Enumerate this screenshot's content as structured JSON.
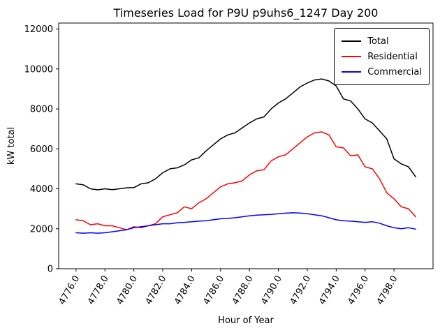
{
  "chart_data": {
    "type": "line",
    "title": "Timeseries Load for P9U p9uhs6_1247  Day 200",
    "xlabel": "Hour of Year",
    "ylabel": "kW total",
    "xlim": [
      4774.8,
      4800.7
    ],
    "ylim": [
      0,
      12300
    ],
    "grid": false,
    "legend_position": "upper right",
    "xticks": [
      4776,
      4778,
      4780,
      4782,
      4784,
      4786,
      4788,
      4790,
      4792,
      4794,
      4796,
      4798
    ],
    "xtick_labels": [
      "4776.0",
      "4778.0",
      "4780.0",
      "4782.0",
      "4784.0",
      "4786.0",
      "4788.0",
      "4790.0",
      "4792.0",
      "4794.0",
      "4796.0",
      "4798.0"
    ],
    "yticks": [
      0,
      2000,
      4000,
      6000,
      8000,
      10000,
      12000
    ],
    "ytick_labels": [
      "0",
      "2000",
      "4000",
      "6000",
      "8000",
      "10000",
      "12000"
    ],
    "x": [
      4776.0,
      4776.5,
      4777.0,
      4777.5,
      4778.0,
      4778.5,
      4779.0,
      4779.5,
      4780.0,
      4780.5,
      4781.0,
      4781.5,
      4782.0,
      4782.5,
      4783.0,
      4783.5,
      4784.0,
      4784.5,
      4785.0,
      4785.5,
      4786.0,
      4786.5,
      4787.0,
      4787.5,
      4788.0,
      4788.5,
      4789.0,
      4789.5,
      4790.0,
      4790.5,
      4791.0,
      4791.5,
      4792.0,
      4792.5,
      4793.0,
      4793.5,
      4794.0,
      4794.5,
      4795.0,
      4795.5,
      4796.0,
      4796.5,
      4797.0,
      4797.5,
      4798.0,
      4798.5,
      4799.0,
      4799.5
    ],
    "series": [
      {
        "name": "Total",
        "color": "#000000",
        "values": [
          4250,
          4200,
          4000,
          3950,
          4000,
          3960,
          4000,
          4050,
          4060,
          4250,
          4300,
          4500,
          4800,
          5000,
          5050,
          5200,
          5450,
          5550,
          5900,
          6200,
          6500,
          6700,
          6800,
          7050,
          7300,
          7500,
          7600,
          8000,
          8300,
          8500,
          8800,
          9100,
          9300,
          9450,
          9500,
          9400,
          9150,
          8500,
          8400,
          8000,
          7500,
          7300,
          6900,
          6500,
          5500,
          5250,
          5100,
          4600
        ]
      },
      {
        "name": "Residential",
        "color": "#ff0000",
        "values": [
          2450,
          2400,
          2200,
          2250,
          2150,
          2150,
          2050,
          1950,
          2100,
          2050,
          2150,
          2250,
          2600,
          2700,
          2800,
          3100,
          3000,
          3300,
          3500,
          3800,
          4100,
          4250,
          4300,
          4400,
          4700,
          4900,
          4950,
          5400,
          5600,
          5700,
          6000,
          6300,
          6600,
          6800,
          6850,
          6700,
          6100,
          6050,
          5650,
          5700,
          5100,
          5000,
          4500,
          3800,
          3500,
          3100,
          3000,
          2600
        ]
      },
      {
        "name": "Commercial",
        "color": "#0000ff",
        "values": [
          1800,
          1780,
          1800,
          1780,
          1800,
          1850,
          1900,
          1950,
          2050,
          2100,
          2150,
          2200,
          2250,
          2250,
          2300,
          2320,
          2350,
          2380,
          2400,
          2450,
          2500,
          2520,
          2550,
          2600,
          2650,
          2680,
          2700,
          2720,
          2750,
          2780,
          2800,
          2790,
          2750,
          2700,
          2650,
          2550,
          2450,
          2400,
          2380,
          2350,
          2320,
          2350,
          2280,
          2150,
          2050,
          2000,
          2050,
          1980
        ]
      }
    ]
  }
}
